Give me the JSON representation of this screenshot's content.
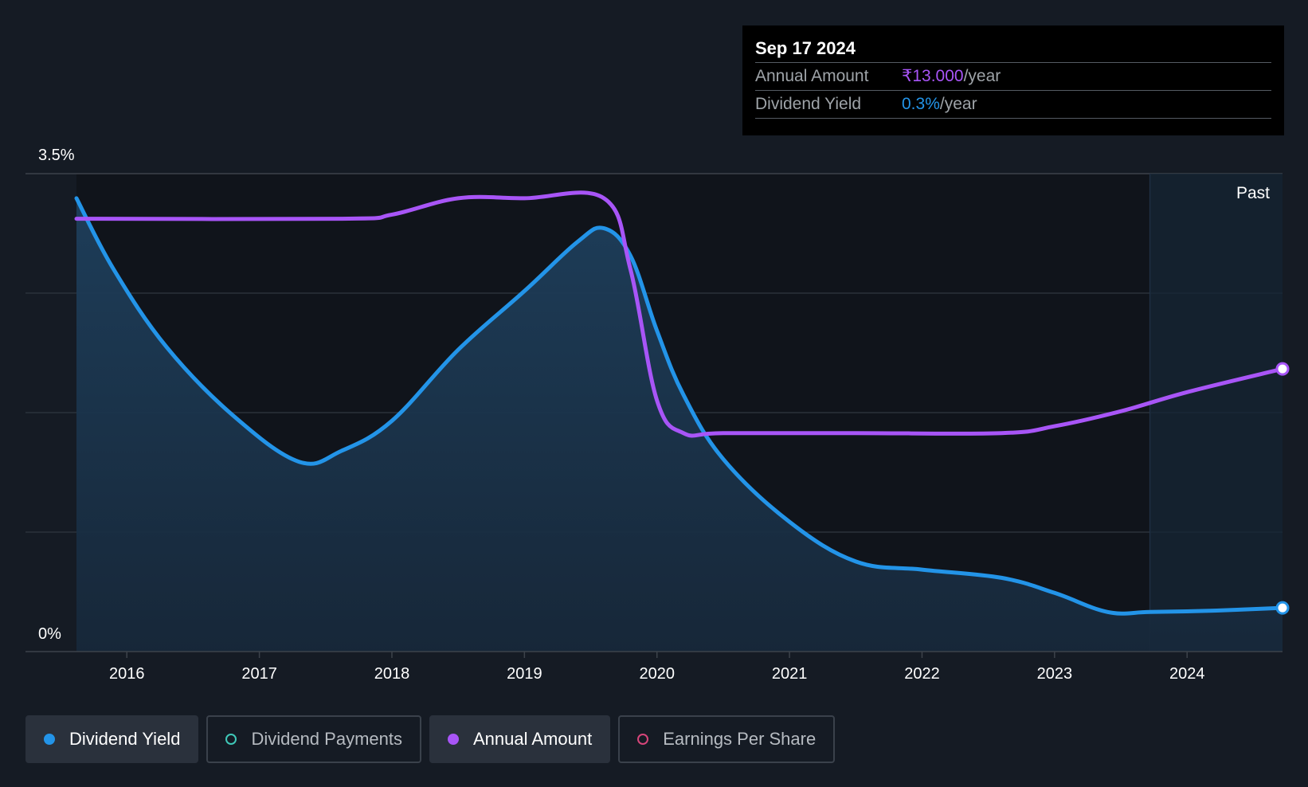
{
  "tooltip": {
    "date": "Sep 17 2024",
    "rows": [
      {
        "label": "Annual Amount",
        "value": "₹13.000",
        "unit": "/year"
      },
      {
        "label": "Dividend Yield",
        "value": "0.3%",
        "unit": "/year"
      }
    ]
  },
  "legend": [
    {
      "label": "Dividend Yield",
      "color": "#2394e8",
      "active": true,
      "filled": true
    },
    {
      "label": "Dividend Payments",
      "color": "#3fc8b8",
      "active": false,
      "filled": false
    },
    {
      "label": "Annual Amount",
      "color": "#a855f7",
      "active": true,
      "filled": true
    },
    {
      "label": "Earnings Per Share",
      "color": "#d6457a",
      "active": false,
      "filled": false
    }
  ],
  "chart_data": {
    "type": "line",
    "y_top_label": "3.5%",
    "y_bottom_label": "0%",
    "ylim": [
      0,
      3.5
    ],
    "xlim": [
      2015.62,
      2024.72
    ],
    "x_ticks": [
      "2016",
      "2017",
      "2018",
      "2019",
      "2020",
      "2021",
      "2022",
      "2023",
      "2024"
    ],
    "past_label": "Past",
    "past_start": 2023.72,
    "grid": true,
    "series": [
      {
        "name": "Dividend Yield",
        "color": "#2394e8",
        "area": true,
        "x": [
          2015.62,
          2015.9,
          2016.3,
          2016.8,
          2017.3,
          2017.62,
          2018.0,
          2018.5,
          2019.0,
          2019.4,
          2019.6,
          2019.8,
          2020.0,
          2020.2,
          2020.5,
          2021.0,
          2021.5,
          2022.0,
          2022.6,
          2023.0,
          2023.4,
          2023.72,
          2024.2,
          2024.72
        ],
        "y": [
          3.32,
          2.8,
          2.23,
          1.73,
          1.39,
          1.47,
          1.69,
          2.21,
          2.64,
          3.0,
          3.1,
          2.9,
          2.35,
          1.88,
          1.41,
          0.95,
          0.66,
          0.6,
          0.54,
          0.43,
          0.29,
          0.29,
          0.3,
          0.32
        ]
      },
      {
        "name": "Annual Amount",
        "color": "#a855f7",
        "area": false,
        "x": [
          2015.62,
          2017.62,
          2018.0,
          2018.5,
          2019.0,
          2019.6,
          2019.8,
          2020.0,
          2020.2,
          2020.5,
          2021.5,
          2022.6,
          2023.0,
          2023.5,
          2024.0,
          2024.72
        ],
        "y": [
          3.17,
          3.17,
          3.2,
          3.32,
          3.32,
          3.32,
          2.8,
          1.84,
          1.6,
          1.6,
          1.6,
          1.6,
          1.65,
          1.76,
          1.9,
          2.07
        ]
      }
    ]
  }
}
